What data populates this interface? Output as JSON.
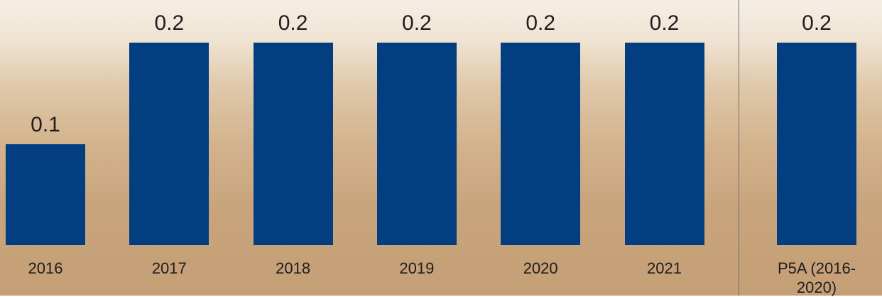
{
  "chart_data": {
    "type": "bar",
    "categories": [
      "2016",
      "2017",
      "2018",
      "2019",
      "2020",
      "2021",
      "P5A (2016-2020)"
    ],
    "values": [
      0.1,
      0.2,
      0.2,
      0.2,
      0.2,
      0.2,
      0.2
    ],
    "color": "#023e80"
  }
}
